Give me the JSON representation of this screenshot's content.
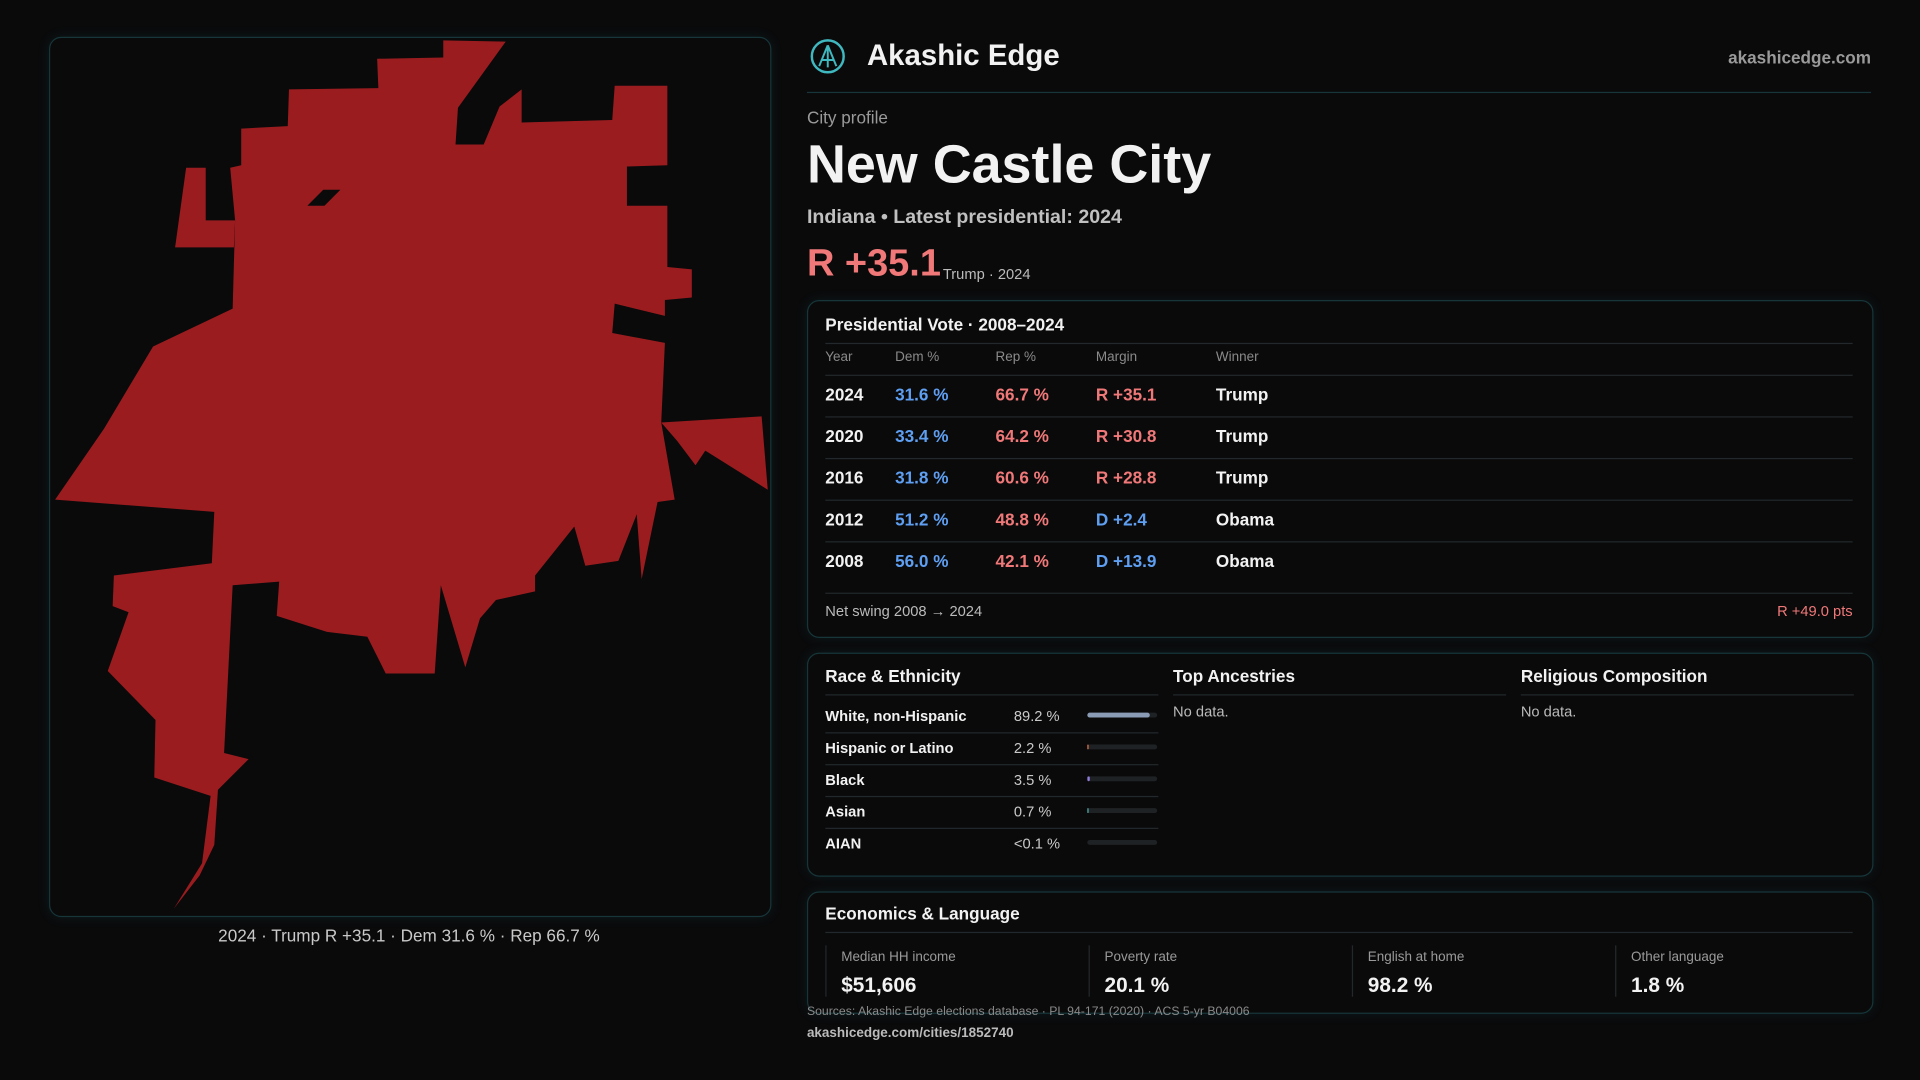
{
  "header": {
    "brand": "Akashic Edge",
    "site": "akashicedge.com"
  },
  "profile": {
    "kicker": "City profile",
    "name": "New Castle City",
    "subtitle": "Indiana • Latest presidential: 2024",
    "margin": "R +35.1",
    "margin_note": "Trump · 2024"
  },
  "map": {
    "caption": "2024 · Trump R +35.1 · Dem 31.6 % · Rep 66.7 %"
  },
  "vote_table": {
    "title": "Presidential Vote · 2008–2024",
    "columns": [
      "Year",
      "Dem %",
      "Rep %",
      "Margin",
      "Winner"
    ],
    "rows": [
      [
        "2024",
        "31.6 %",
        "66.7 %",
        "R +35.1",
        "Trump"
      ],
      [
        "2020",
        "33.4 %",
        "64.2 %",
        "R +30.8",
        "Trump"
      ],
      [
        "2016",
        "31.8 %",
        "60.6 %",
        "R +28.8",
        "Trump"
      ],
      [
        "2012",
        "51.2 %",
        "48.8 %",
        "D +2.4",
        "Obama"
      ],
      [
        "2008",
        "56.0 %",
        "42.1 %",
        "D +13.9",
        "Obama"
      ]
    ],
    "swing_label": "Net swing 2008 → 2024",
    "swing_value": "R +49.0 pts"
  },
  "race": {
    "title": "Race & Ethnicity",
    "rows": [
      {
        "label": "White, non-Hispanic",
        "share": 89.2,
        "share_label": "89.2 %",
        "color": "#8a9bb5"
      },
      {
        "label": "Hispanic or Latino",
        "share": 2.2,
        "share_label": "2.2 %",
        "color": "#e0784a"
      },
      {
        "label": "Black",
        "share": 3.5,
        "share_label": "3.5 %",
        "color": "#8f7bd8"
      },
      {
        "label": "Asian",
        "share": 0.7,
        "share_label": "0.7 %",
        "color": "#4fb0a8"
      },
      {
        "label": "AIAN",
        "share": null,
        "share_label": "<0.1 %",
        "color": "#c9a34a"
      }
    ]
  },
  "ancestries": {
    "title": "Top Ancestries",
    "note": "No data."
  },
  "religion": {
    "title": "Religious Composition",
    "note": "No data."
  },
  "economics": {
    "title": "Economics & Language",
    "metrics": [
      {
        "label": "Median HH income",
        "value": "$51,606"
      },
      {
        "label": "Poverty rate",
        "value": "20.1 %"
      },
      {
        "label": "English at home",
        "value": "98.2 %"
      },
      {
        "label": "Other language",
        "value": "1.8 %"
      }
    ]
  },
  "sources": {
    "text": "Sources: Akashic Edge elections database · PL 94-171 (2020) · ACS 5-yr B04006",
    "url": "akashicedge.com/cities/1852740"
  }
}
